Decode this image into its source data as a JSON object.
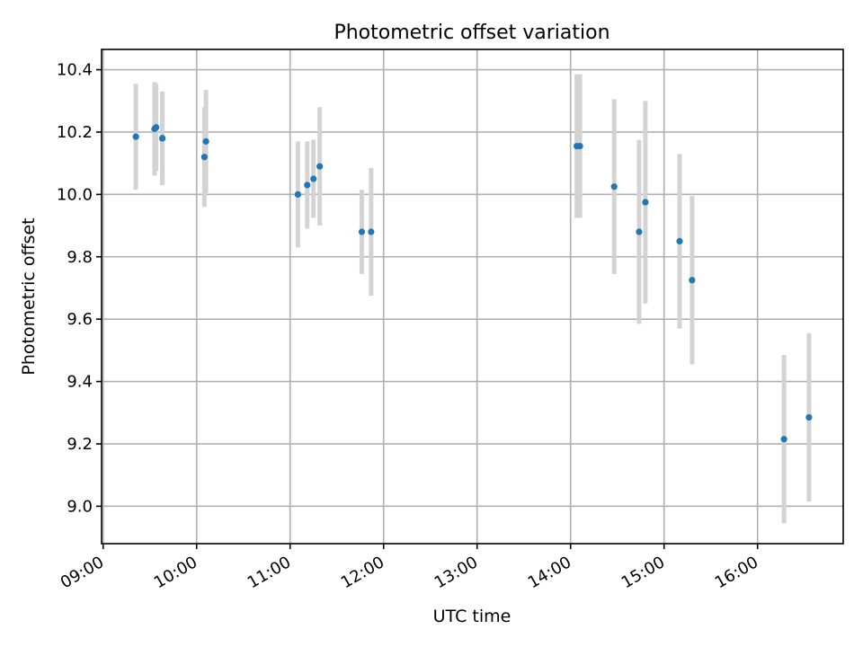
{
  "chart_data": {
    "type": "scatter",
    "title": "Photometric offset variation",
    "xlabel": "UTC time",
    "ylabel": "Photometric offset",
    "x_ticks": [
      "09:00",
      "10:00",
      "11:00",
      "12:00",
      "13:00",
      "14:00",
      "15:00",
      "16:00"
    ],
    "y_ticks": [
      "9.0",
      "9.2",
      "9.4",
      "9.6",
      "9.8",
      "10.0",
      "10.2",
      "10.4"
    ],
    "xlim": [
      "08:59",
      "16:55"
    ],
    "ylim": [
      8.88,
      10.465
    ],
    "grid": true,
    "point_color": "#1f77b4",
    "errorbar_color": "#d3d3d3",
    "points": [
      {
        "x": "09:21",
        "y": 10.185,
        "err": 0.17
      },
      {
        "x": "09:33",
        "y": 10.21,
        "err": 0.15
      },
      {
        "x": "09:34",
        "y": 10.215,
        "err": 0.14
      },
      {
        "x": "09:38",
        "y": 10.18,
        "err": 0.15
      },
      {
        "x": "09:38",
        "y": 10.18,
        "err": 0.15
      },
      {
        "x": "10:05",
        "y": 10.12,
        "err": 0.16
      },
      {
        "x": "10:06",
        "y": 10.17,
        "err": 0.165
      },
      {
        "x": "11:05",
        "y": 10.0,
        "err": 0.17
      },
      {
        "x": "11:11",
        "y": 10.03,
        "err": 0.14
      },
      {
        "x": "11:15",
        "y": 10.05,
        "err": 0.125
      },
      {
        "x": "11:19",
        "y": 10.09,
        "err": 0.19
      },
      {
        "x": "11:46",
        "y": 9.88,
        "err": 0.135
      },
      {
        "x": "11:52",
        "y": 9.88,
        "err": 0.205
      },
      {
        "x": "14:04",
        "y": 10.155,
        "err": 0.23
      },
      {
        "x": "14:06",
        "y": 10.155,
        "err": 0.23
      },
      {
        "x": "14:28",
        "y": 10.025,
        "err": 0.28
      },
      {
        "x": "14:44",
        "y": 9.88,
        "err": 0.295
      },
      {
        "x": "14:48",
        "y": 9.975,
        "err": 0.325
      },
      {
        "x": "15:10",
        "y": 9.85,
        "err": 0.28
      },
      {
        "x": "15:18",
        "y": 9.725,
        "err": 0.27
      },
      {
        "x": "16:17",
        "y": 9.215,
        "err": 0.27
      },
      {
        "x": "16:33",
        "y": 9.285,
        "err": 0.27
      }
    ]
  }
}
